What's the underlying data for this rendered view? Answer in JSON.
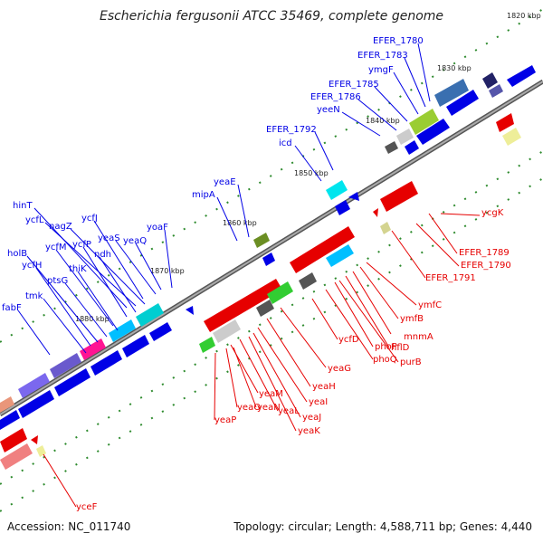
{
  "title": "Escherichia fergusonii ATCC 35469, complete genome",
  "footer": {
    "accession": "Accession: NC_011740",
    "summary": "Topology: circular; Length: 4,588,711 bp; Genes: 4,440"
  },
  "colors": {
    "forward": "#0000e6",
    "reverse": "#e60000",
    "backbone": "#808080"
  },
  "ticks": [
    "1820 kbp",
    "1830 kbp",
    "1840 kbp",
    "1850 kbp",
    "1860 kbp",
    "1870 kbp",
    "1880 kbp"
  ],
  "forward_labels": [
    "EFER_1780",
    "EFER_1783",
    "ymgF",
    "EFER_1785",
    "EFER_1786",
    "yeeN",
    "EFER_1792",
    "icd",
    "yeaE",
    "mipA",
    "hinT",
    "ycfL",
    "nagZ",
    "ycfJ",
    "yeaS",
    "yoaF",
    "holB",
    "ycfM",
    "ycfP",
    "ndh",
    "yeaQ",
    "ycfH",
    "thiK",
    "ptsG",
    "tmk",
    "fabF"
  ],
  "reverse_labels": [
    "ycgK",
    "EFER_1789",
    "EFER_1790",
    "EFER_1791",
    "ymfC",
    "ymfB",
    "mnmA",
    "hflD",
    "purB",
    "phoP",
    "phoQ",
    "ycfD",
    "yeaG",
    "yeaH",
    "yeaI",
    "yeaJ",
    "yeaK",
    "yeaL",
    "yeaM",
    "yeaN",
    "yeaO",
    "yeaP",
    "yceF"
  ]
}
